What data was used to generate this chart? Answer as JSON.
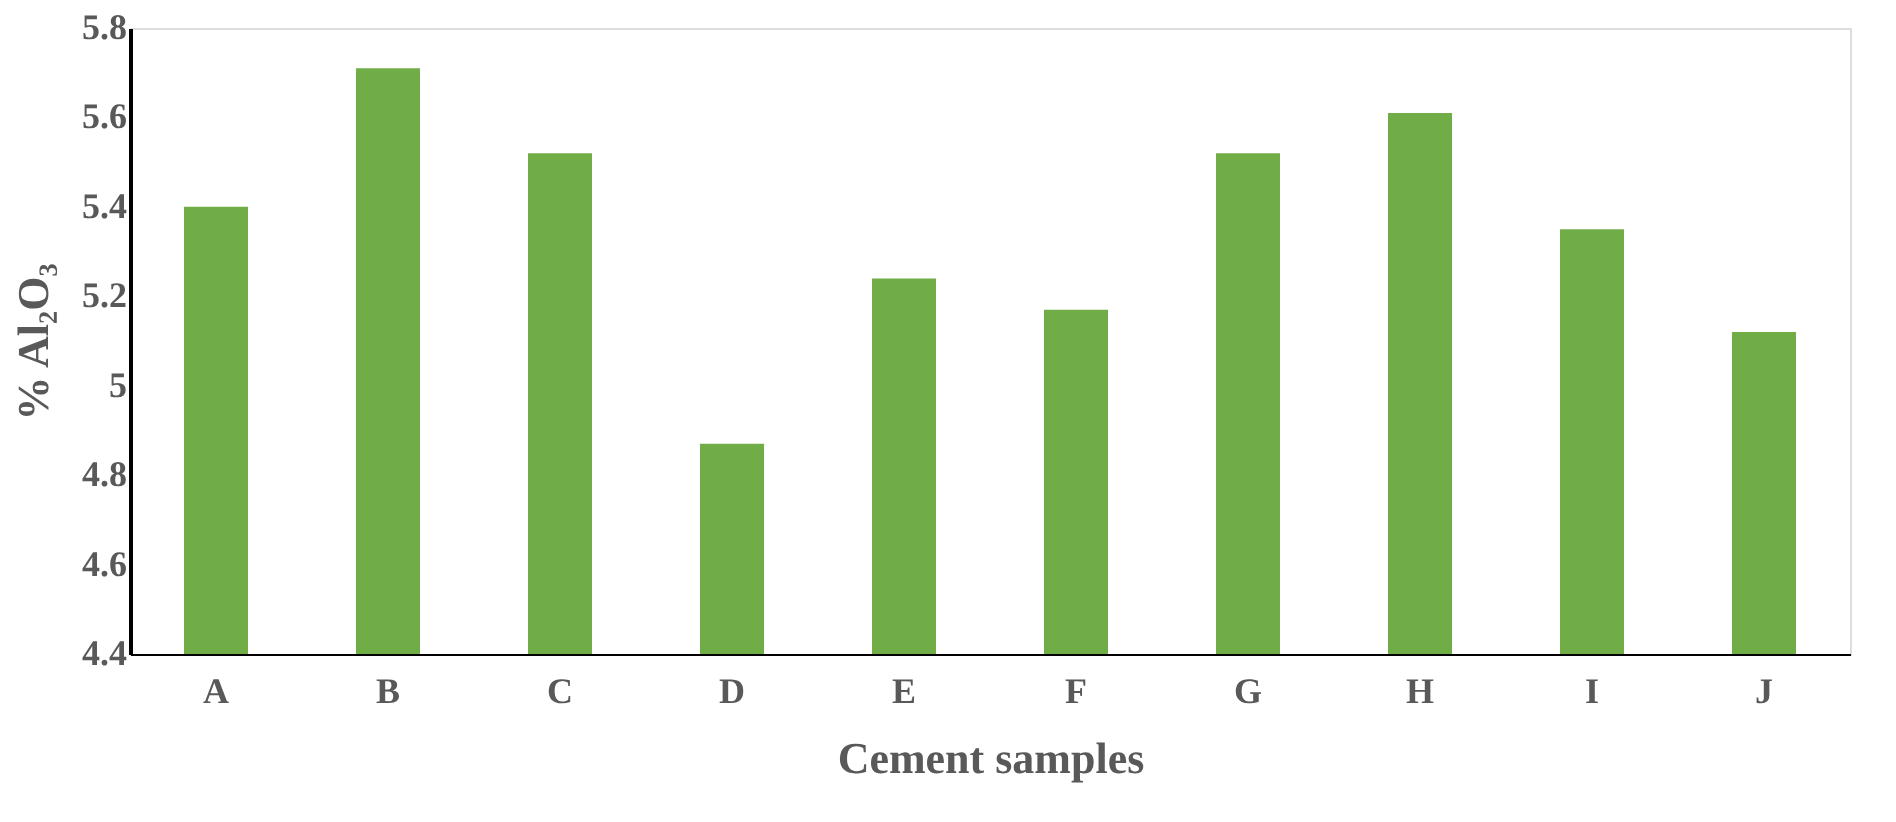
{
  "chart_data": {
    "type": "bar",
    "xlabel": "Cement samples",
    "ylabel": "% Al₂O₃",
    "categories": [
      "A",
      "B",
      "C",
      "D",
      "E",
      "F",
      "G",
      "H",
      "I",
      "J"
    ],
    "values": [
      5.4,
      5.71,
      5.52,
      4.87,
      5.24,
      5.17,
      5.52,
      5.61,
      5.35,
      5.12
    ],
    "color": "#70ad47",
    "ylim": [
      4.4,
      5.8
    ],
    "yticks": [
      4.4,
      4.6,
      4.8,
      5,
      5.2,
      5.4,
      5.6,
      5.8
    ],
    "grid": false
  }
}
